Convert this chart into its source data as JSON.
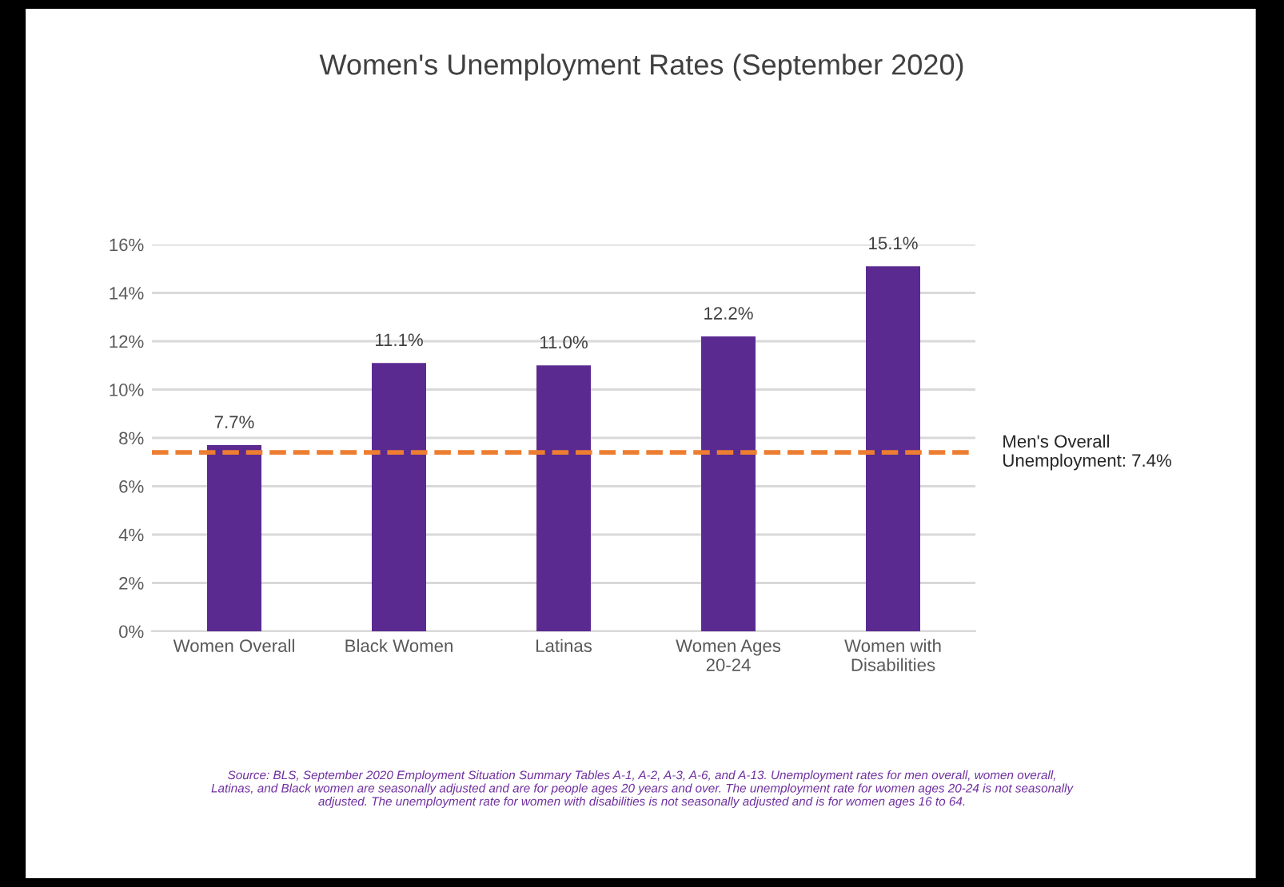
{
  "chart_data": {
    "type": "bar",
    "title": "Women's Unemployment Rates (September 2020)",
    "categories": [
      "Women Overall",
      "Black Women",
      "Latinas",
      "Women Ages\n20-24",
      "Women with\nDisabilities"
    ],
    "values": [
      7.7,
      11.1,
      11.0,
      12.2,
      15.1
    ],
    "value_labels": [
      "7.7%",
      "11.1%",
      "11.0%",
      "12.2%",
      "15.1%"
    ],
    "color": "#5b2a91",
    "ylim": [
      0,
      16
    ],
    "yticks": [
      {
        "value": 0,
        "label": "0%"
      },
      {
        "value": 2,
        "label": "2%"
      },
      {
        "value": 4,
        "label": "4%"
      },
      {
        "value": 6,
        "label": "6%"
      },
      {
        "value": 8,
        "label": "8%"
      },
      {
        "value": 10,
        "label": "10%"
      },
      {
        "value": 12,
        "label": "12%"
      },
      {
        "value": 14,
        "label": "14%"
      },
      {
        "value": 16,
        "label": "16%"
      }
    ],
    "grid": "y",
    "ref_lines": [
      {
        "axis": "y",
        "value": 7.4,
        "label": "Men's Overall\nUnemployment: 7.4%",
        "color": "#ed7d31",
        "line_style": "dashed"
      }
    ],
    "annotations": [
      "Source: BLS, September 2020 Employment Situation Summary Tables A-1, A-2, A-3, A-6, and A-13. Unemployment rates for men overall, women overall, Latinas, and Black women are seasonally adjusted and are for people ages 20 years and over. The unemployment rate for women ages 20-24 is not seasonally adjusted. The unemployment rate for women with disabilities is not seasonally adjusted and is for women ages 16 to 64."
    ]
  }
}
